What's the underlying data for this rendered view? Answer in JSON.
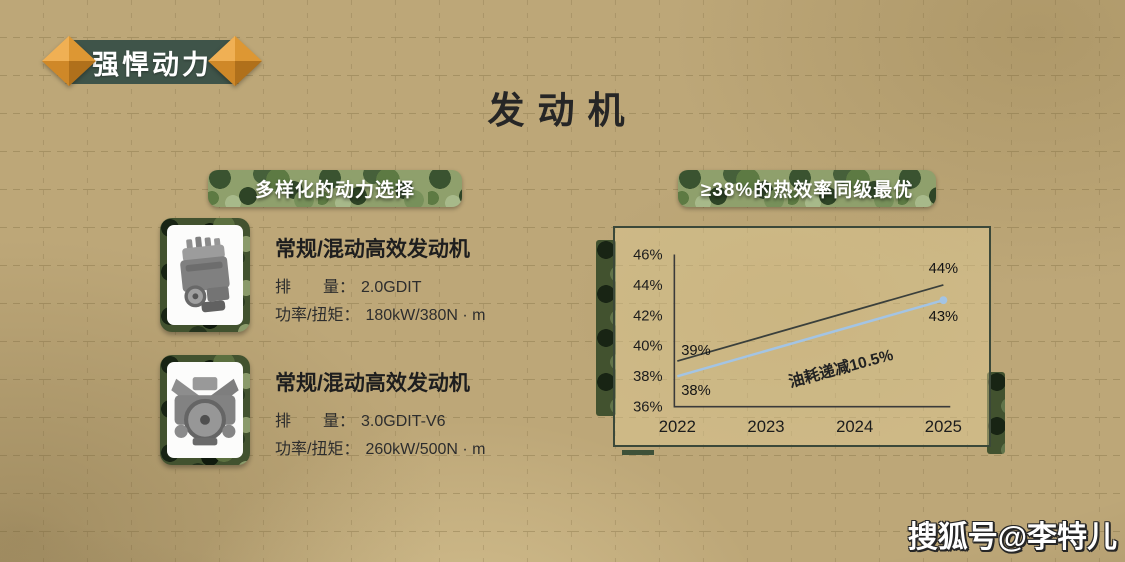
{
  "slide": {
    "badge_label": "强悍动力",
    "title": "发动机",
    "watermark": "搜狐号@李特儿"
  },
  "left_panel": {
    "header": "多样化的动力选择",
    "engines": [
      {
        "name": "常规/混动高效发动机",
        "specs": [
          {
            "label": "排　　量：",
            "value": "2.0GDIT"
          },
          {
            "label": "功率/扭矩：",
            "value": "180kW/380N · m"
          }
        ]
      },
      {
        "name": "常规/混动高效发动机",
        "specs": [
          {
            "label": "排　　量：",
            "value": "3.0GDIT-V6"
          },
          {
            "label": "功率/扭矩：",
            "value": "260kW/500N · m"
          }
        ]
      }
    ]
  },
  "right_panel": {
    "header": "≥38%的热效率同级最优"
  },
  "chart_data": {
    "type": "line",
    "title": "≥38%的热效率同级最优",
    "xlabel": "",
    "ylabel": "",
    "ylim": [
      36,
      46
    ],
    "yticks": [
      "46%",
      "44%",
      "42%",
      "40%",
      "38%",
      "36%"
    ],
    "xticks": [
      "2022",
      "2023",
      "2024",
      "2025"
    ],
    "series": [
      {
        "id": "upper-efficiency-line",
        "color": "#3a3f3b",
        "width": 1.8,
        "end_dot": false,
        "x": [
          2022,
          2025
        ],
        "values": [
          39,
          44
        ]
      },
      {
        "id": "lower-efficiency-line",
        "color": "#a3c4e4",
        "width": 2.5,
        "end_dot": true,
        "x": [
          2022,
          2025
        ],
        "values": [
          38,
          43
        ]
      }
    ],
    "annotation": "油耗递减10.5%",
    "legend": "none",
    "grid": "dashed page grid shows through panel"
  },
  "colors": {
    "background_tan": "#bda778",
    "badge_green": "#3f5449",
    "gem_orange": "#e3992f",
    "camo_dark_green": "#42522f",
    "camo_light_green": "#8fa06c",
    "chart_border": "#3b4839",
    "line_dark": "#3a3f3b",
    "line_blue": "#a3c4e4",
    "text_dark": "#262626"
  }
}
